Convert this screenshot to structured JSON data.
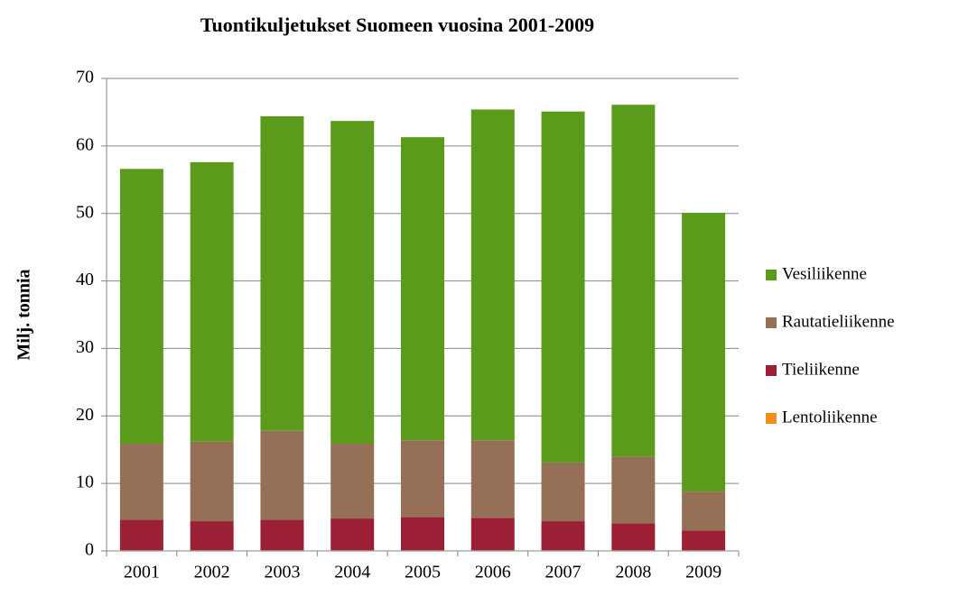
{
  "chart_data": {
    "type": "stacked_bar",
    "title": "Tuontikuljetukset Suomeen vuosina 2001-2009",
    "y_label": "Milj. tonnia",
    "categories": [
      "2001",
      "2002",
      "2003",
      "2004",
      "2005",
      "2006",
      "2007",
      "2008",
      "2009"
    ],
    "series": [
      {
        "name": "Lentoliikenne",
        "color": "#f0901a",
        "values": [
          0.1,
          0.1,
          0.1,
          0.1,
          0.1,
          0.1,
          0.1,
          0.1,
          0.1
        ]
      },
      {
        "name": "Tieliikenne",
        "color": "#9b1f35",
        "values": [
          4.5,
          4.3,
          4.5,
          4.7,
          4.9,
          4.8,
          4.3,
          4.0,
          2.9
        ]
      },
      {
        "name": "Rautatieliikenne",
        "color": "#967056",
        "values": [
          11.3,
          11.8,
          13.2,
          11.1,
          11.4,
          11.5,
          8.7,
          9.9,
          5.8
        ]
      },
      {
        "name": "Vesiliikenne",
        "color": "#5b9b1c",
        "values": [
          40.7,
          41.4,
          46.6,
          47.8,
          44.9,
          49.0,
          52.0,
          52.1,
          41.3
        ]
      }
    ],
    "ylim": [
      0,
      70
    ],
    "yticks": [
      0,
      10,
      20,
      30,
      40,
      50,
      60,
      70
    ],
    "grid": true,
    "legend": "right"
  }
}
